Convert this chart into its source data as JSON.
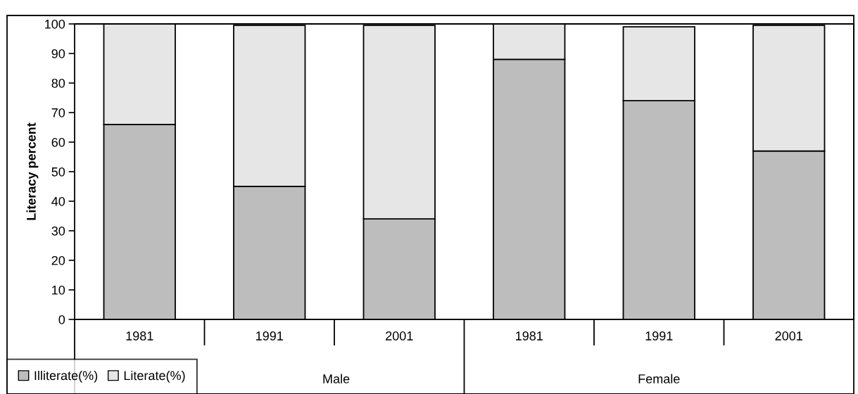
{
  "chart_data": {
    "type": "bar",
    "stacked": true,
    "ylabel": "Literacy percent",
    "categories": [
      "1981",
      "1991",
      "2001",
      "1981",
      "1991",
      "2001"
    ],
    "series": [
      {
        "name": "Illiterate(%)",
        "color": "#bdbdbd",
        "values": [
          66,
          45,
          34,
          88,
          74,
          57
        ]
      },
      {
        "name": "Literate(%)",
        "color": "#e6e6e6",
        "values": [
          34,
          54.5,
          65.5,
          12,
          25,
          42.5
        ]
      }
    ],
    "annotations": [
      "Male",
      "Female"
    ],
    "ylim": [
      0,
      100
    ],
    "yticks": [
      0,
      10,
      20,
      30,
      40,
      50,
      60,
      70,
      80,
      90,
      100
    ],
    "grid": false,
    "legend": "bottom left"
  }
}
